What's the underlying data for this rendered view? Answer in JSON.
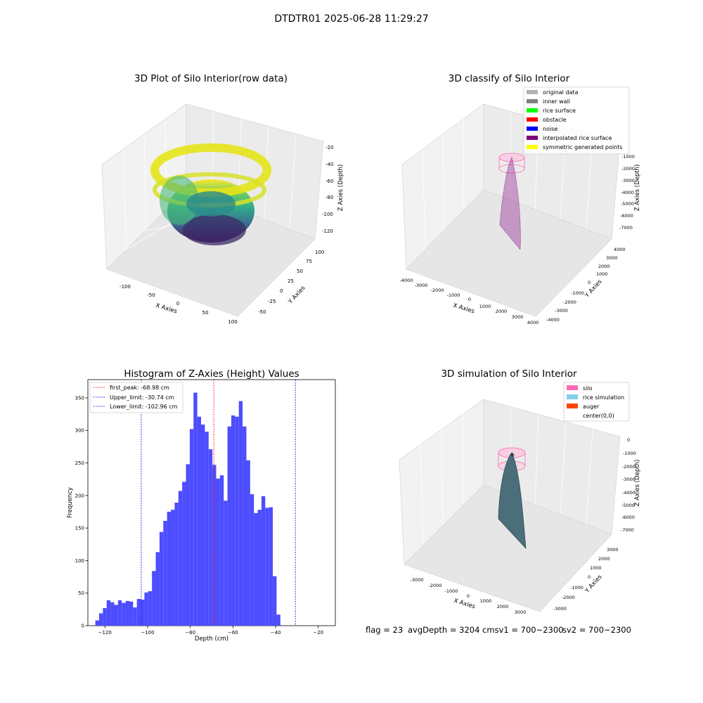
{
  "suptitle": "DTDTR01 2025-06-28 11:29:27",
  "footer": {
    "flag": "flag = 23",
    "avg": "avgDepth = 3204 cmsv1 = 700~2300",
    "sv2": "sv2 = 700~2300"
  },
  "panels": {
    "raw": {
      "title": "3D Plot of Silo Interior(row data)",
      "xlabel": "X Axies",
      "ylabel": "Y Axies",
      "zlabel": "Z Axies (Depth)",
      "xticks": [
        "-100",
        "-50",
        "0",
        "50",
        "100"
      ],
      "yticks": [
        "-50",
        "-25",
        "0",
        "25",
        "50",
        "75",
        "100"
      ],
      "zticks": [
        "-20",
        "-40",
        "-60",
        "-80",
        "-100",
        "-120"
      ]
    },
    "classify": {
      "title": "3D classify of Silo Interior",
      "xlabel": "X Axies",
      "ylabel": "Y Axies",
      "zlabel": "Z Axies (Depth)",
      "xticks": [
        "-4000",
        "-3000",
        "-2000",
        "-1000",
        "0",
        "1000",
        "2000",
        "3000",
        "4000"
      ],
      "yticks": [
        "-4000",
        "-3000",
        "-2000",
        "-1000",
        "0",
        "1000",
        "2000",
        "3000",
        "4000"
      ],
      "zticks": [
        "-1000",
        "-2000",
        "-3000",
        "-4000",
        "-5000",
        "-6000",
        "-7000"
      ],
      "legend": [
        {
          "label": "original data",
          "color": "#b3b3b3"
        },
        {
          "label": "inner wall",
          "color": "#808080"
        },
        {
          "label": "rice surface",
          "color": "#00ff00"
        },
        {
          "label": "obstacle",
          "color": "#ff0000"
        },
        {
          "label": "noise",
          "color": "#0000ff"
        },
        {
          "label": "interpolated rice surface",
          "color": "#800080"
        },
        {
          "label": "symmetric generated points",
          "color": "#ffff00"
        }
      ]
    },
    "simulation": {
      "title": "3D simulation of Silo Interior",
      "xlabel": "X Axies",
      "ylabel": "Y Axies",
      "zlabel": "Z Axies (Depth)",
      "xticks": [
        "-3000",
        "-2000",
        "-1000",
        "0",
        "1000",
        "2000",
        "3000"
      ],
      "yticks": [
        "-3000",
        "-2000",
        "-1000",
        "0",
        "1000",
        "2000",
        "3000"
      ],
      "zticks": [
        "0",
        "-1000",
        "-2000",
        "-3000",
        "-4000",
        "-5000",
        "-6000",
        "-7000"
      ],
      "legend": [
        {
          "label": "silo",
          "color": "#ff69b4"
        },
        {
          "label": "rice simulation",
          "color": "#87ceeb"
        },
        {
          "label": "auger",
          "color": "#ff4500"
        },
        {
          "label": "center(0,0)",
          "color": "none"
        }
      ]
    }
  },
  "chart_data": {
    "type": "bar",
    "title": "Histogram of Z-Axies (Height) Values",
    "xlabel": "Depth (cm)",
    "ylabel": "Frequency",
    "xlim": [
      -128,
      -12
    ],
    "ylim": [
      0,
      378
    ],
    "xticks": [
      -120,
      -100,
      -80,
      -60,
      -40,
      -20
    ],
    "yticks": [
      0,
      50,
      100,
      150,
      200,
      250,
      300,
      350
    ],
    "bar_color": "#4d4dff",
    "bin_start": -124.5,
    "bin_width": 1.77,
    "values": [
      8,
      19,
      27,
      39,
      36,
      32,
      39,
      35,
      38,
      37,
      28,
      41,
      40,
      51,
      53,
      84,
      113,
      144,
      161,
      175,
      178,
      189,
      207,
      221,
      248,
      302,
      358,
      321,
      309,
      298,
      271,
      247,
      226,
      231,
      192,
      306,
      323,
      321,
      345,
      306,
      254,
      202,
      173,
      178,
      199,
      181,
      182,
      76,
      17
    ],
    "legend": [
      {
        "label": "first_peak: -68.98 cm",
        "value": -68.98,
        "color": "#ff0000"
      },
      {
        "label": "Upper_limit: -30.74 cm",
        "value": -30.74,
        "color": "#0000ff"
      },
      {
        "label": "Lower_limit: -102.96 cm",
        "value": -102.96,
        "color": "#0000ff"
      }
    ]
  }
}
